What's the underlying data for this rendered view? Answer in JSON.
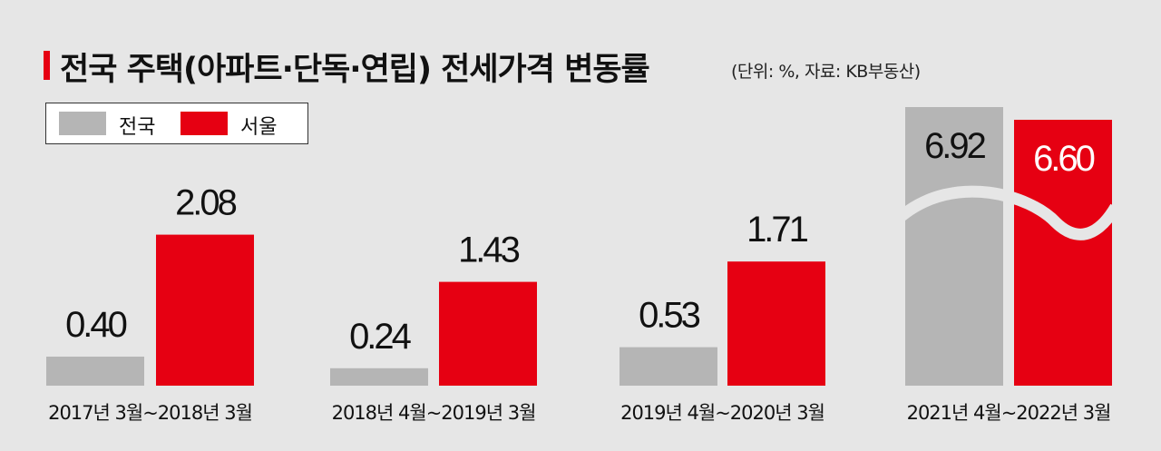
{
  "header": {
    "title": "전국 주택(아파트·단독·연립) 전세가격 변동률",
    "subtitle": "(단위: %, 자료: KB부동산)"
  },
  "legend": {
    "items": [
      {
        "label": "전국",
        "color": "#b5b5b5"
      },
      {
        "label": "서울",
        "color": "#e60012"
      }
    ]
  },
  "chart_data": {
    "type": "bar",
    "title": "전국 주택(아파트·단독·연립) 전세가격 변동률",
    "subtitle": "(단위: %, 자료: KB부동산)",
    "categories": [
      "2017년 3월~2018년 3월",
      "2018년 4월~2019년 3월",
      "2019년 4월~2020년 3월",
      "2021년 4월~2022년 3월"
    ],
    "series": [
      {
        "name": "전국",
        "values": [
          0.4,
          0.24,
          0.53,
          6.92
        ],
        "labels": [
          "0.40",
          "0.24",
          "0.53",
          "6.92"
        ],
        "color": "#b5b5b5"
      },
      {
        "name": "서울",
        "values": [
          2.08,
          1.43,
          1.71,
          6.6
        ],
        "labels": [
          "2.08",
          "1.43",
          "1.71",
          "6.60"
        ],
        "color": "#e60012"
      }
    ],
    "broken_axis_categories": [
      3
    ],
    "legend_position": "top-left",
    "grid": false
  }
}
